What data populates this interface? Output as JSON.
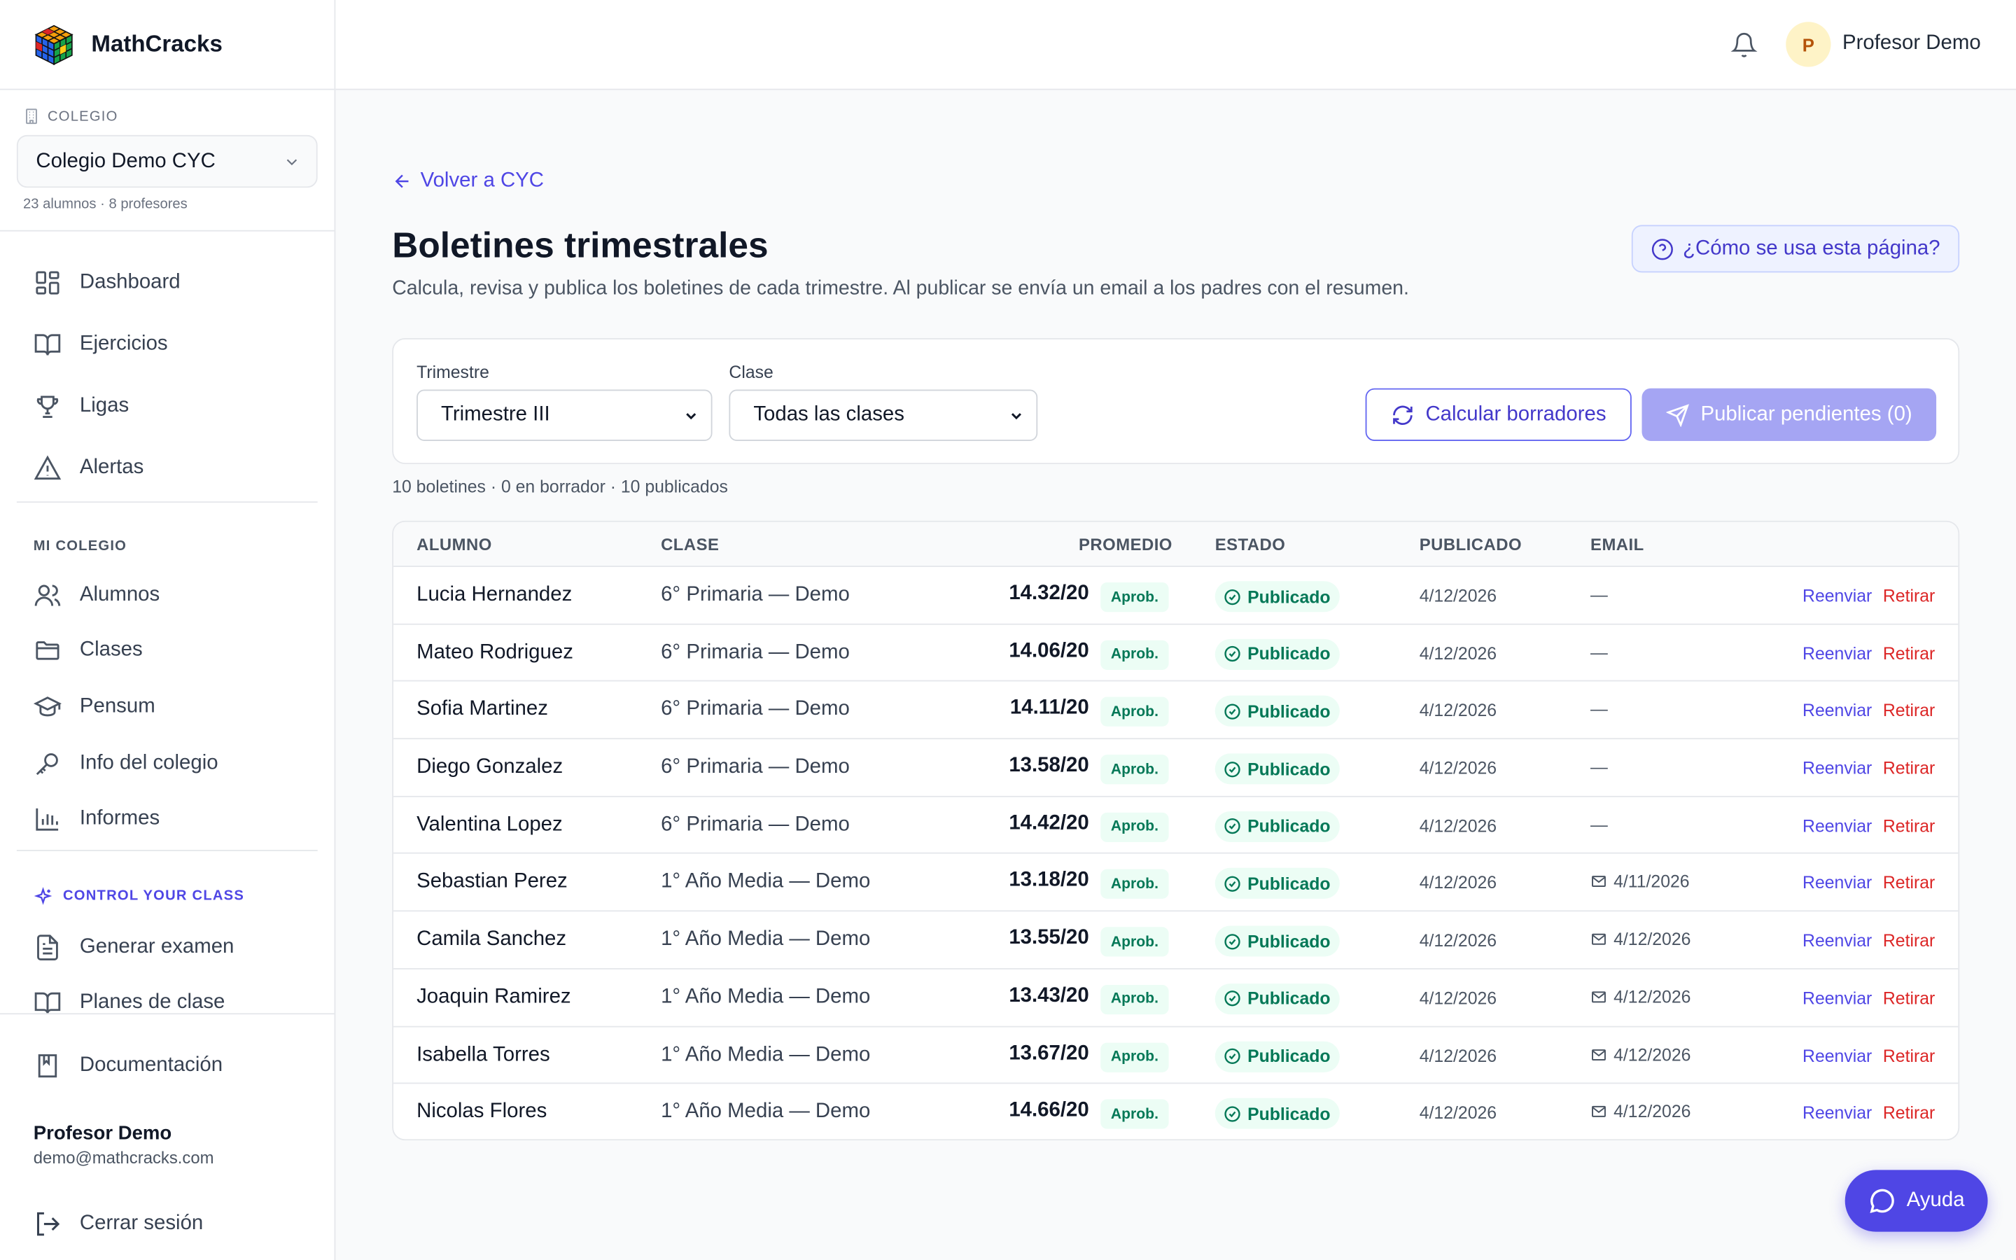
{
  "brand": {
    "name": "MathCracks"
  },
  "school": {
    "label": "COLEGIO",
    "selected": "Colegio Demo CYC",
    "meta": "23 alumnos · 8 profesores"
  },
  "nav": {
    "main": [
      {
        "label": "Dashboard",
        "icon": "grid-icon"
      },
      {
        "label": "Ejercicios",
        "icon": "book-open-icon"
      },
      {
        "label": "Ligas",
        "icon": "trophy-icon"
      },
      {
        "label": "Alertas",
        "icon": "warning-icon"
      }
    ],
    "section_school": "MI COLEGIO",
    "school_items": [
      {
        "label": "Alumnos",
        "icon": "users-icon"
      },
      {
        "label": "Clases",
        "icon": "folder-icon"
      },
      {
        "label": "Pensum",
        "icon": "graduation-cap-icon"
      },
      {
        "label": "Info del colegio",
        "icon": "key-icon"
      },
      {
        "label": "Informes",
        "icon": "bar-chart-icon"
      }
    ],
    "section_cyc": "CONTROL YOUR CLASS",
    "cyc_items": [
      {
        "label": "Generar examen",
        "icon": "file-text-icon"
      },
      {
        "label": "Planes de clase",
        "icon": "book-open-icon"
      }
    ]
  },
  "sidebar_bottom": {
    "docs_label": "Documentación",
    "user_name": "Profesor Demo",
    "user_email": "demo@mathcracks.com",
    "logout_label": "Cerrar sesión"
  },
  "header": {
    "avatar_initial": "P",
    "user_name": "Profesor Demo"
  },
  "page": {
    "back_label": "Volver a CYC",
    "title": "Boletines trimestrales",
    "subtitle": "Calcula, revisa y publica los boletines de cada trimestre. Al publicar se envía un email a los padres con el resumen.",
    "help_label": "¿Cómo se usa esta página?"
  },
  "filters": {
    "trimestre_label": "Trimestre",
    "trimestre_value": "Trimestre III",
    "clase_label": "Clase",
    "clase_value": "Todas las clases",
    "calc_label": "Calcular borradores",
    "publish_label": "Publicar pendientes (0)"
  },
  "summary": "10 boletines · 0 en borrador · 10 publicados",
  "table": {
    "headers": {
      "alumno": "ALUMNO",
      "clase": "CLASE",
      "promedio": "PROMEDIO",
      "estado": "ESTADO",
      "publicado": "PUBLICADO",
      "email": "EMAIL"
    },
    "badge_label": "Aprob.",
    "status_label": "Publicado",
    "resend_label": "Reenviar",
    "retire_label": "Retirar",
    "rows": [
      {
        "name": "Lucia Hernandez",
        "class": "6° Primaria — Demo",
        "avg": "14.32/20",
        "published": "4/12/2026",
        "email": "—",
        "email_sent": false
      },
      {
        "name": "Mateo Rodriguez",
        "class": "6° Primaria — Demo",
        "avg": "14.06/20",
        "published": "4/12/2026",
        "email": "—",
        "email_sent": false
      },
      {
        "name": "Sofia Martinez",
        "class": "6° Primaria — Demo",
        "avg": "14.11/20",
        "published": "4/12/2026",
        "email": "—",
        "email_sent": false
      },
      {
        "name": "Diego Gonzalez",
        "class": "6° Primaria — Demo",
        "avg": "13.58/20",
        "published": "4/12/2026",
        "email": "—",
        "email_sent": false
      },
      {
        "name": "Valentina Lopez",
        "class": "6° Primaria — Demo",
        "avg": "14.42/20",
        "published": "4/12/2026",
        "email": "—",
        "email_sent": false
      },
      {
        "name": "Sebastian Perez",
        "class": "1° Año Media — Demo",
        "avg": "13.18/20",
        "published": "4/12/2026",
        "email": "4/11/2026",
        "email_sent": true
      },
      {
        "name": "Camila Sanchez",
        "class": "1° Año Media — Demo",
        "avg": "13.55/20",
        "published": "4/12/2026",
        "email": "4/12/2026",
        "email_sent": true
      },
      {
        "name": "Joaquin Ramirez",
        "class": "1° Año Media — Demo",
        "avg": "13.43/20",
        "published": "4/12/2026",
        "email": "4/12/2026",
        "email_sent": true
      },
      {
        "name": "Isabella Torres",
        "class": "1° Año Media — Demo",
        "avg": "13.67/20",
        "published": "4/12/2026",
        "email": "4/12/2026",
        "email_sent": true
      },
      {
        "name": "Nicolas Flores",
        "class": "1° Año Media — Demo",
        "avg": "14.66/20",
        "published": "4/12/2026",
        "email": "4/12/2026",
        "email_sent": true
      }
    ]
  },
  "fab": {
    "label": "Ayuda"
  },
  "colors": {
    "accent": "#4f46e5",
    "success": "#047857",
    "danger": "#dc2626"
  }
}
